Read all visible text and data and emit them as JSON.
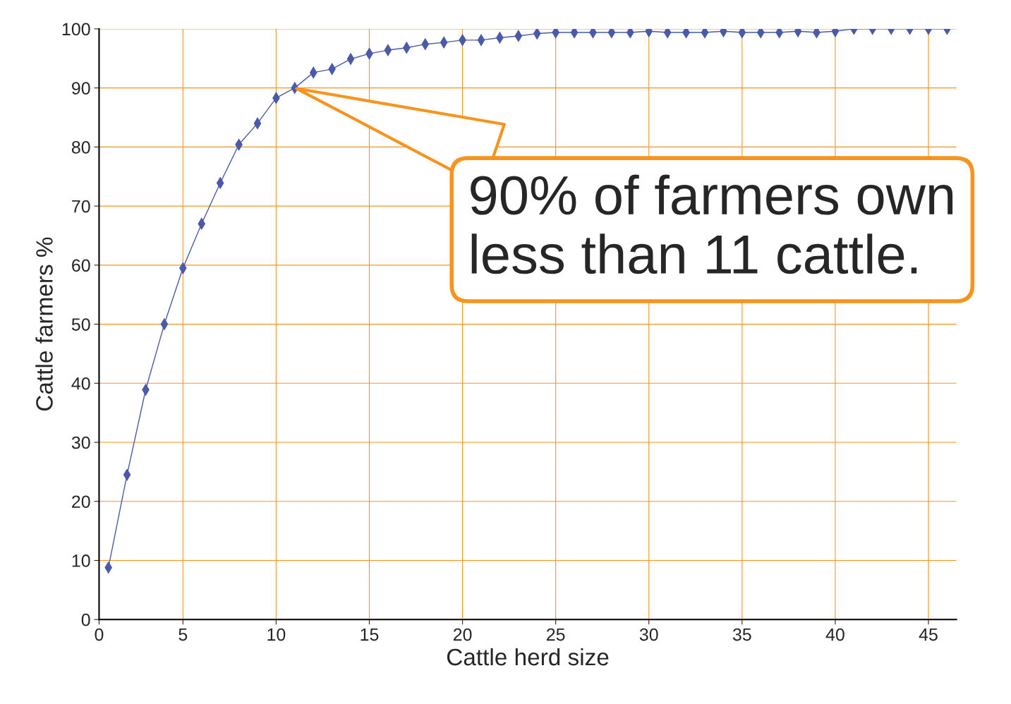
{
  "chart_data": {
    "type": "line",
    "xlabel": "Cattle herd size",
    "ylabel": "Cattle farmers %",
    "x": [
      1,
      2,
      3,
      4,
      5,
      6,
      7,
      8,
      9,
      10,
      11,
      12,
      13,
      14,
      15,
      16,
      17,
      18,
      19,
      20,
      21,
      22,
      23,
      24,
      25,
      26,
      27,
      28,
      29,
      30,
      31,
      32,
      33,
      34,
      35,
      36,
      37,
      38,
      39,
      40,
      41,
      42,
      43,
      44,
      45,
      46
    ],
    "series": [
      {
        "color": "#4a5aa8",
        "values": [
          8.8,
          24.5,
          38.9,
          50,
          59.5,
          67,
          73.9,
          80.4,
          84,
          88.3,
          90,
          92.6,
          93.2,
          94.9,
          95.8,
          96.4,
          96.8,
          97.4,
          97.7,
          98.1,
          98.1,
          98.5,
          98.8,
          99.2,
          99.4,
          99.4,
          99.4,
          99.4,
          99.4,
          99.6,
          99.4,
          99.4,
          99.4,
          99.6,
          99.4,
          99.4,
          99.4,
          99.6,
          99.4,
          99.6,
          100,
          100,
          100,
          100,
          100,
          100
        ]
      }
    ],
    "xlim": [
      0.5,
      46.5
    ],
    "xticks": [
      {
        "value": 0.5,
        "label": "0"
      },
      5,
      10,
      15,
      20,
      25,
      30,
      35,
      40,
      45
    ],
    "ylim": [
      0,
      100
    ],
    "yticks": [
      0,
      10,
      20,
      30,
      40,
      50,
      60,
      70,
      80,
      90,
      100
    ],
    "grid": true,
    "marker": "diamond",
    "legend": false,
    "annotations": [
      {
        "text": "90% of farmers own\nless than 11 cattle.",
        "x": 11,
        "y": 90
      }
    ]
  }
}
